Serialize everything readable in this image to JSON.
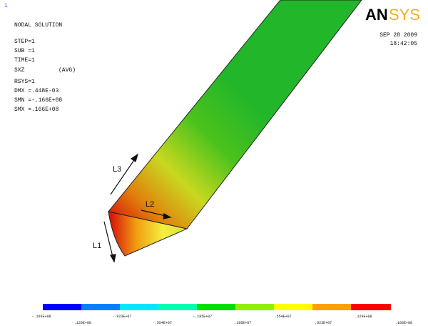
{
  "corner_number": "1",
  "title": "NODAL SOLUTION",
  "info": [
    "STEP=1",
    "SUB =1",
    "TIME=1"
  ],
  "component": {
    "name": "SXZ",
    "averaging": "(AVG)"
  },
  "info2": [
    "RSYS=1",
    "DMX =.448E-03",
    "SMN =-.166E+08",
    "SMX =.166E+08"
  ],
  "logo": [
    "AN",
    "SYS"
  ],
  "date": "SEP 28 2009",
  "time": "18:42:05",
  "annotations": [
    "L3",
    "L2",
    "L1"
  ],
  "colorbar_labels": [
    "-.166E+08",
    "-.129E+08",
    "-.923E+07",
    "-.554E+07",
    "-.185E+07",
    ".185E+07",
    ".554E+07",
    ".923E+07",
    ".129E+08",
    ".166E+08"
  ]
}
